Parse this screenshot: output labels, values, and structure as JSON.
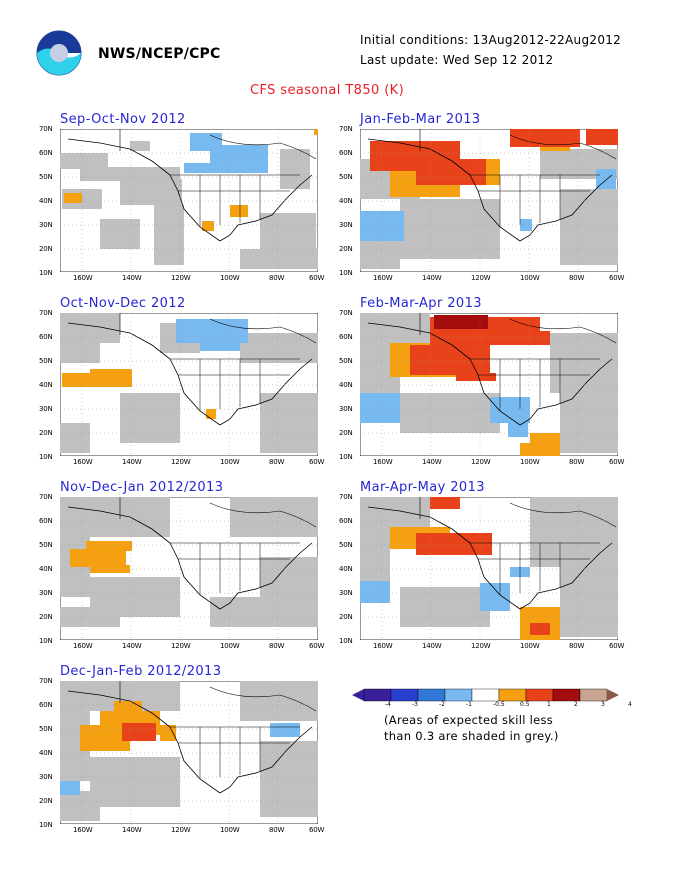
{
  "header": {
    "org": "NWS/NCEP/CPC",
    "initial_conditions": "Initial conditions: 13Aug2012-22Aug2012",
    "last_update": "Last update: Wed Sep 12 2012",
    "title": "CFS seasonal T850 (K)"
  },
  "axes": {
    "lat_labels": [
      "70N",
      "60N",
      "50N",
      "40N",
      "30N",
      "20N",
      "10N"
    ],
    "lon_labels": [
      "160W",
      "140W",
      "120W",
      "100W",
      "80W",
      "60W"
    ]
  },
  "colors": {
    "land_line": "#000000",
    "skill_grey": "#c0c0c0",
    "blue_light": "#78b9f0",
    "orange": "#f5a011",
    "red": "#e8421b",
    "dark_red": "#a30d0d"
  },
  "panels": [
    {
      "title": "Sep-Oct-Nov 2012",
      "anomaly": "weak; light blue over northwestern Canada, small orange spots"
    },
    {
      "title": "Oct-Nov-Dec 2012",
      "anomaly": "light blue over central Canada, orange over east Pacific"
    },
    {
      "title": "Nov-Dec-Jan 2012/2013",
      "anomaly": "orange over northeast Pacific"
    },
    {
      "title": "Dec-Jan-Feb 2012/2013",
      "anomaly": "orange and red over Gulf of Alaska"
    },
    {
      "title": "Jan-Feb-Mar 2013",
      "anomaly": "orange and red over western Canada and Alaska"
    },
    {
      "title": "Feb-Mar-Apr 2013",
      "anomaly": "red and dark red over western Canada"
    },
    {
      "title": "Mar-Apr-May 2013",
      "anomaly": "orange and red over western Canada, blue over Mexico"
    }
  ],
  "colorbar": {
    "labels": [
      "-4",
      "-3",
      "-2",
      "-1",
      "-0.5",
      "0.5",
      "1",
      "2",
      "3",
      "4"
    ],
    "colors": [
      "#3a1f9a",
      "#2a3fd0",
      "#2f78d8",
      "#78b9f0",
      "#ffffff",
      "#f5a011",
      "#e8421b",
      "#a30d0d",
      "#c8a590"
    ]
  },
  "note": {
    "line1": "(Areas of expected skill less",
    "line2": "than 0.3 are shaded in grey.)"
  }
}
